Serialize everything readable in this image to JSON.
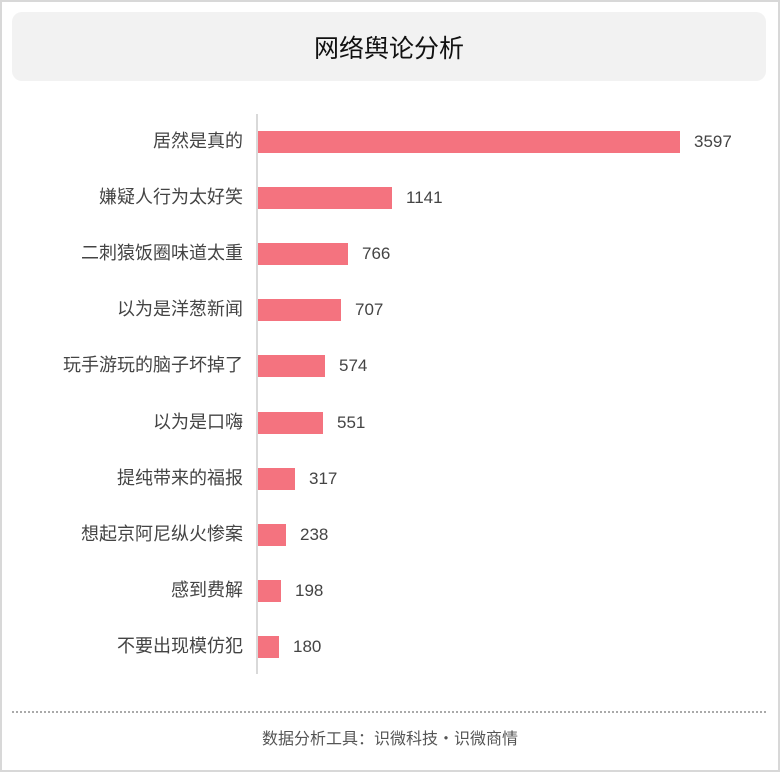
{
  "title": "网络舆论分析",
  "footer": "数据分析工具：识微科技・识微商情",
  "colors": {
    "bar": "#f4737f",
    "title_bg": "#f2f2f2"
  },
  "chart_data": {
    "type": "bar",
    "orientation": "horizontal",
    "title": "网络舆论分析",
    "categories": [
      "居然是真的",
      "嫌疑人行为太好笑",
      "二刺猿饭圈味道太重",
      "以为是洋葱新闻",
      "玩手游玩的脑子坏掉了",
      "以为是口嗨",
      "提纯带来的福报",
      "想起京阿尼纵火惨案",
      "感到费解",
      "不要出现模仿犯"
    ],
    "values": [
      3597,
      1141,
      766,
      707,
      574,
      551,
      317,
      238,
      198,
      180
    ],
    "value_labels": [
      "3597",
      "1141",
      "766",
      "707",
      "574",
      "551",
      "317",
      "238",
      "198",
      "180"
    ],
    "xlabel": "",
    "ylabel": "",
    "grid": false,
    "legend": null
  }
}
